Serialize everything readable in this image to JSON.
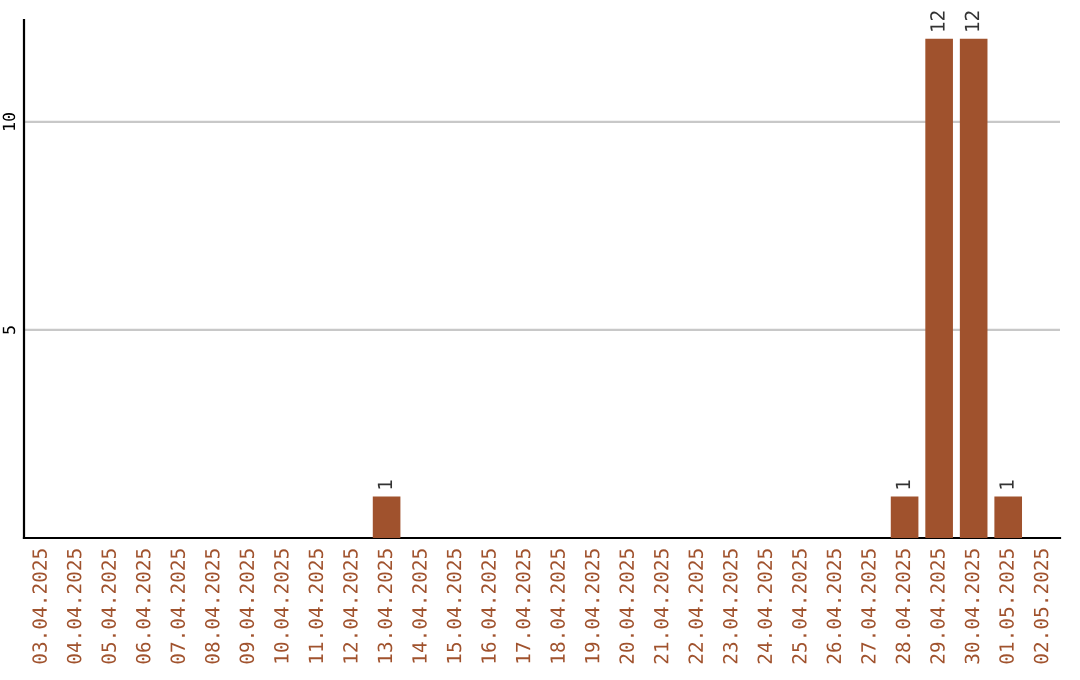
{
  "chart_data": {
    "type": "bar",
    "categories": [
      "03.04.2025",
      "04.04.2025",
      "05.04.2025",
      "06.04.2025",
      "07.04.2025",
      "08.04.2025",
      "09.04.2025",
      "10.04.2025",
      "11.04.2025",
      "12.04.2025",
      "13.04.2025",
      "14.04.2025",
      "15.04.2025",
      "16.04.2025",
      "17.04.2025",
      "18.04.2025",
      "19.04.2025",
      "20.04.2025",
      "21.04.2025",
      "22.04.2025",
      "23.04.2025",
      "24.04.2025",
      "25.04.2025",
      "26.04.2025",
      "27.04.2025",
      "28.04.2025",
      "29.04.2025",
      "30.04.2025",
      "01.05.2025",
      "02.05.2025"
    ],
    "values": [
      0,
      0,
      0,
      0,
      0,
      0,
      0,
      0,
      0,
      0,
      1,
      0,
      0,
      0,
      0,
      0,
      0,
      0,
      0,
      0,
      0,
      0,
      0,
      0,
      0,
      1,
      12,
      12,
      1,
      0
    ],
    "value_labels": [
      null,
      null,
      null,
      null,
      null,
      null,
      null,
      null,
      null,
      null,
      "1",
      null,
      null,
      null,
      null,
      null,
      null,
      null,
      null,
      null,
      null,
      null,
      null,
      null,
      null,
      "1",
      "12",
      "12",
      "1",
      null
    ],
    "color": "#a0522d",
    "ylim": [
      0,
      12.45
    ],
    "yticks": [
      5,
      10
    ],
    "grid": "y",
    "legend": false
  }
}
